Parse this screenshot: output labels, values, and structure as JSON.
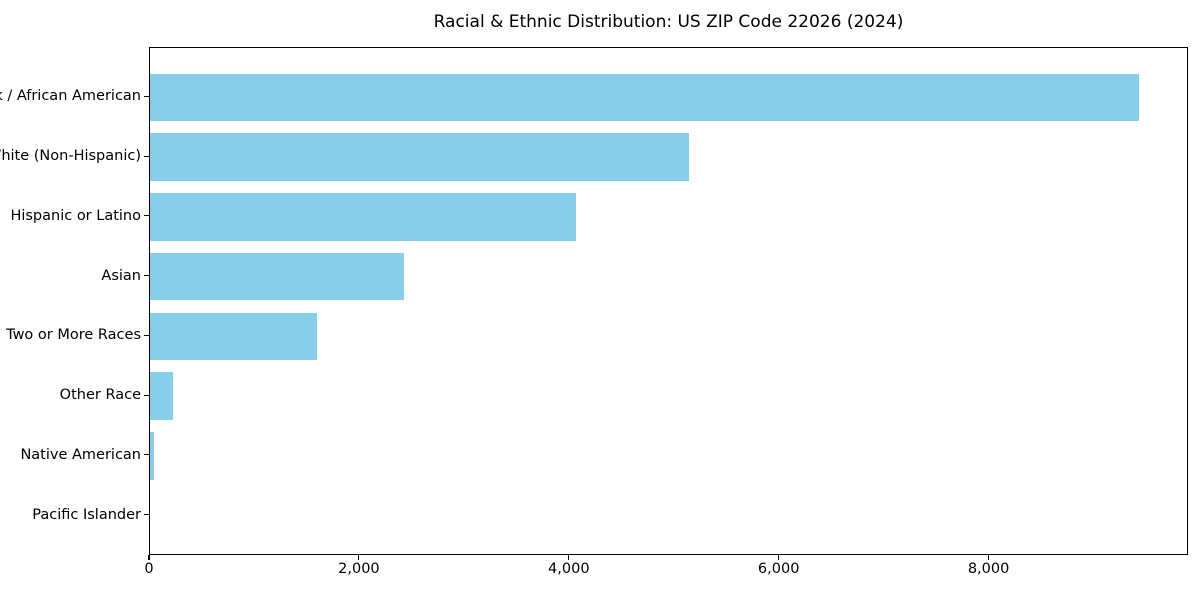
{
  "title": "Racial & Ethnic Distribution: US ZIP Code 22026 (2024)",
  "colors": {
    "bar": "#87CEEB",
    "axis": "#000000",
    "background": "#ffffff",
    "text": "#000000"
  },
  "chart_data": {
    "type": "bar",
    "orientation": "horizontal",
    "title": "Racial & Ethnic Distribution: US ZIP Code 22026 (2024)",
    "categories": [
      "Black / African American",
      "White (Non-Hispanic)",
      "Hispanic or Latino",
      "Asian",
      "Two or More Races",
      "Other Race",
      "Native American",
      "Pacific Islander"
    ],
    "values": [
      9420,
      5140,
      4060,
      2420,
      1590,
      220,
      40,
      0
    ],
    "xlabel": "",
    "ylabel": "",
    "xlim": [
      0,
      9900
    ],
    "x_ticks": [
      0,
      2000,
      4000,
      6000,
      8000
    ],
    "x_tick_labels": [
      "0",
      "2,000",
      "4,000",
      "6,000",
      "8,000"
    ],
    "grid": false,
    "legend": null,
    "bar_color": "#87CEEB"
  }
}
